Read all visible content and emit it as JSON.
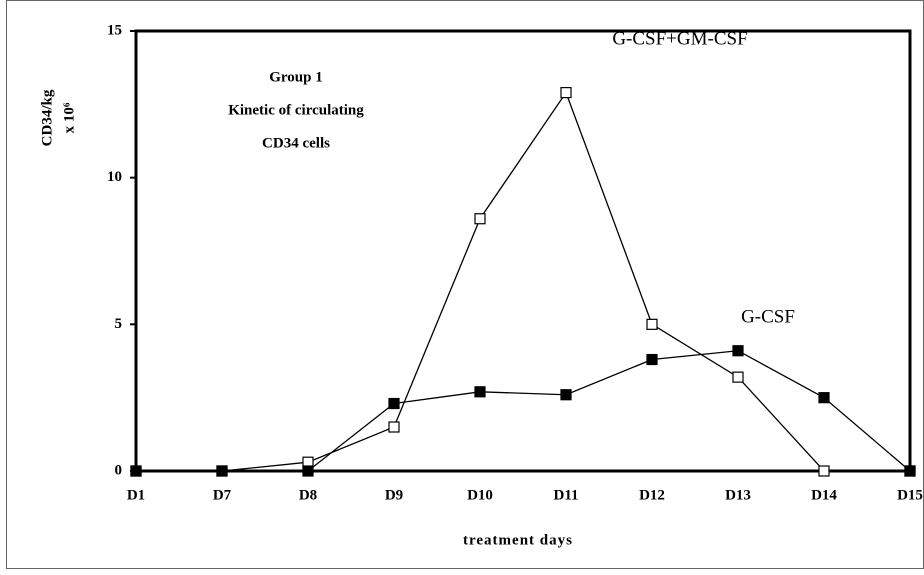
{
  "chart_data": {
    "type": "line",
    "annotations": [
      "Group 1",
      "Kinetic of circulating",
      "CD34 cells"
    ],
    "ylabel": [
      "CD34/kg",
      "x 10⁶"
    ],
    "xlabel": "treatment days",
    "categories": [
      "D1",
      "D7",
      "D8",
      "D9",
      "D10",
      "D11",
      "D12",
      "D13",
      "D14",
      "D15"
    ],
    "series": [
      {
        "name": "G-CSF+GM-CSF",
        "color": "#000000",
        "marker": "open-square",
        "values": [
          0,
          0,
          0.3,
          1.5,
          8.6,
          12.9,
          5.0,
          3.2,
          0,
          0
        ]
      },
      {
        "name": "G-CSF",
        "color": "#000000",
        "marker": "filled-square",
        "values": [
          0,
          0,
          0,
          2.3,
          2.7,
          2.6,
          3.8,
          4.1,
          2.5,
          0
        ]
      }
    ],
    "ylim": [
      0,
      15
    ],
    "yticks": [
      0,
      5,
      10,
      15
    ],
    "grid": false
  }
}
